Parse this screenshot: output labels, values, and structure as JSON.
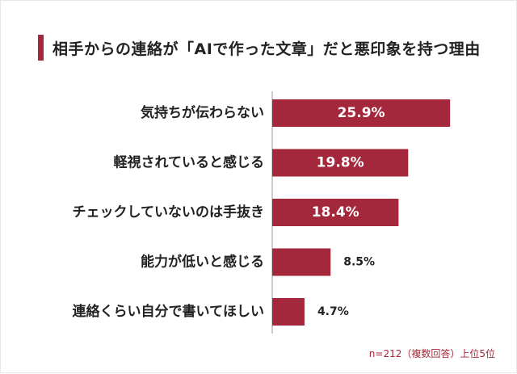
{
  "title": "相手からの連絡が「AIで作った文章」だと悪印象を持つ理由",
  "note": "n=212（複数回答）上位5位",
  "colors": {
    "bar": "#a3283b",
    "axis": "#9a9a9a",
    "label_inside": "#ffffff",
    "label_outside": "#222222"
  },
  "chart_data": {
    "type": "bar",
    "orientation": "horizontal",
    "categories": [
      "気持ちが伝わらない",
      "軽視されていると感じる",
      "チェックしていないのは手抜き",
      "能力が低いと感じる",
      "連絡くらい自分で書いてほしい"
    ],
    "values": [
      25.9,
      19.8,
      18.4,
      8.5,
      4.7
    ],
    "value_labels": [
      "25.9%",
      "19.8%",
      "18.4%",
      "8.5%",
      "4.7%"
    ],
    "unit": "%",
    "xlim": [
      0,
      40
    ],
    "grid": false,
    "legend": "none"
  }
}
